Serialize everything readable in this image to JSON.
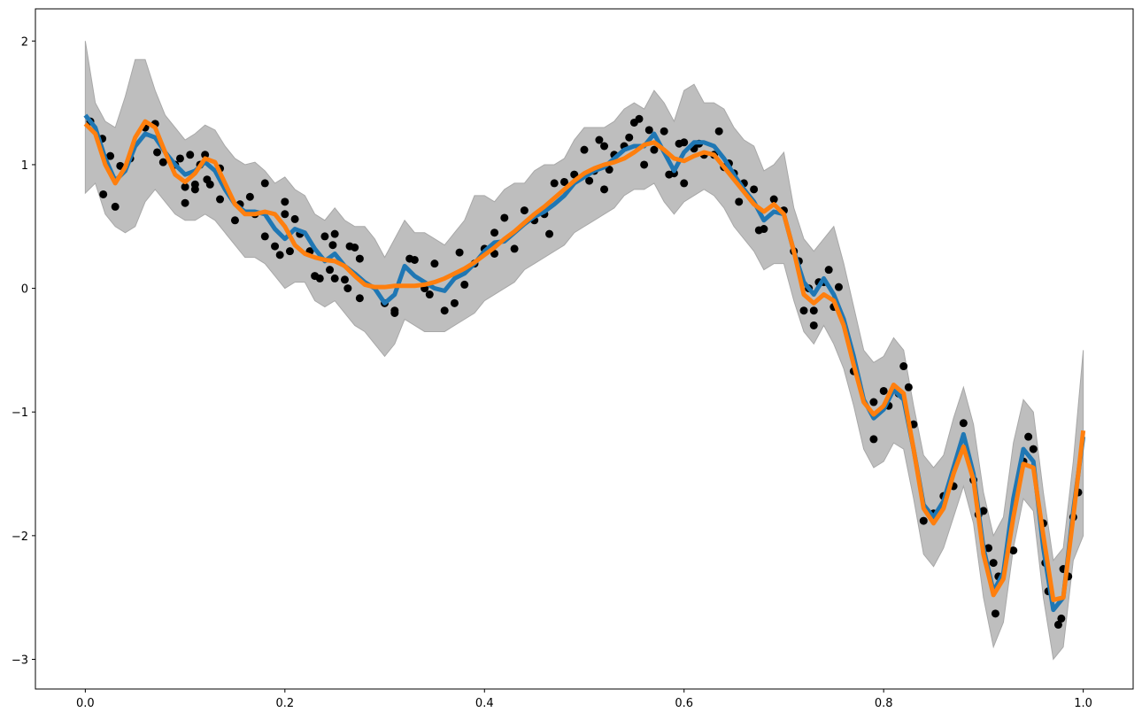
{
  "chart_data": {
    "type": "line",
    "xlim": [
      -0.05,
      1.05
    ],
    "ylim": [
      -3.24,
      2.26
    ],
    "xticks": [
      {
        "value": 0,
        "label": "0.0"
      },
      {
        "value": 0.2,
        "label": "0.2"
      },
      {
        "value": 0.4,
        "label": "0.4"
      },
      {
        "value": 0.6,
        "label": "0.6"
      },
      {
        "value": 0.8,
        "label": "0.8"
      },
      {
        "value": 1,
        "label": "1.0"
      }
    ],
    "yticks": [
      {
        "value": -3,
        "label": "−3"
      },
      {
        "value": -2,
        "label": "−2"
      },
      {
        "value": -1,
        "label": "−1"
      },
      0,
      1,
      2
    ],
    "grid": false,
    "x": [
      0,
      0.01,
      0.02,
      0.03,
      0.04,
      0.05,
      0.06,
      0.07,
      0.08,
      0.09,
      0.1,
      0.11,
      0.12,
      0.13,
      0.14,
      0.15,
      0.16,
      0.17,
      0.18,
      0.19,
      0.2,
      0.21,
      0.22,
      0.23,
      0.24,
      0.25,
      0.26,
      0.27,
      0.28,
      0.29,
      0.3,
      0.31,
      0.32,
      0.33,
      0.34,
      0.35,
      0.36,
      0.37,
      0.38,
      0.39,
      0.4,
      0.41,
      0.42,
      0.43,
      0.44,
      0.45,
      0.46,
      0.47,
      0.48,
      0.49,
      0.5,
      0.51,
      0.52,
      0.53,
      0.54,
      0.55,
      0.56,
      0.57,
      0.58,
      0.59,
      0.6,
      0.61,
      0.62,
      0.63,
      0.64,
      0.65,
      0.66,
      0.67,
      0.68,
      0.69,
      0.7,
      0.71,
      0.72,
      0.73,
      0.74,
      0.75,
      0.76,
      0.77,
      0.78,
      0.79,
      0.8,
      0.81,
      0.82,
      0.83,
      0.84,
      0.85,
      0.86,
      0.87,
      0.88,
      0.89,
      0.9,
      0.91,
      0.92,
      0.93,
      0.94,
      0.95,
      0.96,
      0.97,
      0.98,
      0.99,
      1
    ],
    "band": {
      "color": "#bebebe",
      "edge": "#a8a8a8",
      "upper": [
        2.0,
        1.5,
        1.35,
        1.3,
        1.55,
        1.85,
        1.85,
        1.6,
        1.4,
        1.3,
        1.2,
        1.25,
        1.32,
        1.28,
        1.15,
        1.05,
        1.0,
        1.02,
        0.95,
        0.85,
        0.9,
        0.8,
        0.75,
        0.6,
        0.55,
        0.65,
        0.55,
        0.5,
        0.5,
        0.4,
        0.25,
        0.4,
        0.55,
        0.45,
        0.45,
        0.4,
        0.35,
        0.45,
        0.55,
        0.75,
        0.75,
        0.7,
        0.8,
        0.85,
        0.85,
        0.95,
        1.0,
        1.0,
        1.05,
        1.2,
        1.3,
        1.3,
        1.3,
        1.35,
        1.45,
        1.5,
        1.45,
        1.6,
        1.5,
        1.35,
        1.6,
        1.65,
        1.5,
        1.5,
        1.45,
        1.3,
        1.2,
        1.15,
        0.95,
        1.0,
        1.1,
        0.65,
        0.4,
        0.3,
        0.4,
        0.5,
        0.2,
        -0.15,
        -0.5,
        -0.6,
        -0.55,
        -0.4,
        -0.5,
        -0.95,
        -1.35,
        -1.45,
        -1.35,
        -1.05,
        -0.8,
        -1.1,
        -1.65,
        -2.0,
        -1.85,
        -1.25,
        -0.9,
        -1.0,
        -1.65,
        -2.2,
        -2.1,
        -1.4,
        -0.5
      ],
      "lower": [
        0.77,
        0.85,
        0.6,
        0.5,
        0.45,
        0.5,
        0.7,
        0.8,
        0.7,
        0.6,
        0.55,
        0.55,
        0.6,
        0.55,
        0.45,
        0.35,
        0.25,
        0.25,
        0.2,
        0.1,
        0.0,
        0.05,
        0.05,
        -0.1,
        -0.15,
        -0.1,
        -0.2,
        -0.3,
        -0.35,
        -0.45,
        -0.55,
        -0.45,
        -0.25,
        -0.3,
        -0.35,
        -0.35,
        -0.35,
        -0.3,
        -0.25,
        -0.2,
        -0.1,
        -0.05,
        0.0,
        0.05,
        0.15,
        0.2,
        0.25,
        0.3,
        0.35,
        0.45,
        0.5,
        0.55,
        0.6,
        0.65,
        0.75,
        0.8,
        0.8,
        0.85,
        0.7,
        0.6,
        0.7,
        0.75,
        0.8,
        0.75,
        0.65,
        0.5,
        0.4,
        0.3,
        0.15,
        0.2,
        0.2,
        -0.1,
        -0.35,
        -0.45,
        -0.3,
        -0.45,
        -0.65,
        -0.95,
        -1.3,
        -1.45,
        -1.4,
        -1.25,
        -1.3,
        -1.7,
        -2.15,
        -2.25,
        -2.1,
        -1.85,
        -1.6,
        -1.9,
        -2.5,
        -2.9,
        -2.7,
        -2.1,
        -1.7,
        -1.8,
        -2.5,
        -3.0,
        -2.9,
        -2.2,
        -2.0
      ]
    },
    "series": [
      {
        "color": "#1f77b4",
        "values": [
          1.4,
          1.3,
          1.05,
          0.87,
          0.95,
          1.15,
          1.25,
          1.22,
          1.1,
          1.0,
          0.92,
          0.95,
          1.02,
          0.95,
          0.8,
          0.68,
          0.62,
          0.62,
          0.6,
          0.48,
          0.4,
          0.48,
          0.45,
          0.32,
          0.22,
          0.28,
          0.18,
          0.12,
          0.05,
          0.0,
          -0.12,
          -0.05,
          0.18,
          0.1,
          0.05,
          0.0,
          -0.02,
          0.08,
          0.12,
          0.2,
          0.3,
          0.37,
          0.38,
          0.45,
          0.52,
          0.58,
          0.62,
          0.68,
          0.75,
          0.85,
          0.9,
          0.95,
          0.98,
          1.05,
          1.12,
          1.15,
          1.15,
          1.25,
          1.1,
          0.95,
          1.1,
          1.18,
          1.18,
          1.15,
          1.05,
          0.92,
          0.8,
          0.7,
          0.55,
          0.62,
          0.6,
          0.3,
          0.05,
          -0.05,
          0.08,
          -0.05,
          -0.25,
          -0.55,
          -0.9,
          -1.05,
          -0.98,
          -0.82,
          -0.9,
          -1.3,
          -1.75,
          -1.85,
          -1.72,
          -1.45,
          -1.18,
          -1.5,
          -2.1,
          -2.45,
          -2.3,
          -1.7,
          -1.3,
          -1.4,
          -2.1,
          -2.6,
          -2.5,
          -1.8,
          -1.2
        ]
      },
      {
        "color": "#ff7f0e",
        "values": [
          1.33,
          1.25,
          1.0,
          0.85,
          0.98,
          1.22,
          1.35,
          1.3,
          1.1,
          0.92,
          0.86,
          0.93,
          1.05,
          1.02,
          0.85,
          0.68,
          0.6,
          0.6,
          0.62,
          0.6,
          0.5,
          0.35,
          0.28,
          0.25,
          0.23,
          0.22,
          0.18,
          0.1,
          0.03,
          0.01,
          0.01,
          0.02,
          0.02,
          0.02,
          0.03,
          0.05,
          0.08,
          0.12,
          0.16,
          0.21,
          0.27,
          0.33,
          0.4,
          0.46,
          0.53,
          0.6,
          0.66,
          0.73,
          0.8,
          0.87,
          0.93,
          0.97,
          1.0,
          1.02,
          1.05,
          1.1,
          1.16,
          1.18,
          1.12,
          1.05,
          1.03,
          1.07,
          1.1,
          1.08,
          0.98,
          0.88,
          0.78,
          0.68,
          0.62,
          0.68,
          0.6,
          0.3,
          -0.05,
          -0.12,
          -0.05,
          -0.1,
          -0.3,
          -0.62,
          -0.92,
          -1.02,
          -0.95,
          -0.78,
          -0.85,
          -1.3,
          -1.78,
          -1.9,
          -1.78,
          -1.5,
          -1.28,
          -1.55,
          -2.15,
          -2.48,
          -2.35,
          -1.85,
          -1.42,
          -1.45,
          -2.0,
          -2.52,
          -2.5,
          -1.85,
          -1.15
        ]
      }
    ],
    "scatter": {
      "color": "#000000",
      "x": [
        0.005,
        0.017,
        0.018,
        0.025,
        0.03,
        0.035,
        0.045,
        0.06,
        0.07,
        0.072,
        0.078,
        0.09,
        0.095,
        0.1,
        0.1,
        0.105,
        0.11,
        0.11,
        0.115,
        0.12,
        0.122,
        0.125,
        0.135,
        0.135,
        0.15,
        0.155,
        0.165,
        0.17,
        0.18,
        0.18,
        0.19,
        0.195,
        0.2,
        0.2,
        0.205,
        0.21,
        0.215,
        0.225,
        0.23,
        0.235,
        0.24,
        0.245,
        0.248,
        0.25,
        0.25,
        0.26,
        0.263,
        0.265,
        0.27,
        0.275,
        0.275,
        0.3,
        0.31,
        0.31,
        0.325,
        0.33,
        0.34,
        0.345,
        0.35,
        0.36,
        0.37,
        0.375,
        0.38,
        0.39,
        0.4,
        0.41,
        0.41,
        0.42,
        0.43,
        0.44,
        0.45,
        0.46,
        0.465,
        0.47,
        0.48,
        0.49,
        0.5,
        0.505,
        0.51,
        0.515,
        0.52,
        0.52,
        0.525,
        0.53,
        0.54,
        0.545,
        0.55,
        0.555,
        0.56,
        0.565,
        0.57,
        0.58,
        0.585,
        0.59,
        0.595,
        0.6,
        0.6,
        0.61,
        0.615,
        0.62,
        0.63,
        0.635,
        0.64,
        0.645,
        0.65,
        0.655,
        0.66,
        0.67,
        0.675,
        0.68,
        0.69,
        0.7,
        0.71,
        0.715,
        0.72,
        0.725,
        0.73,
        0.73,
        0.735,
        0.74,
        0.745,
        0.75,
        0.755,
        0.77,
        0.79,
        0.79,
        0.8,
        0.805,
        0.815,
        0.82,
        0.825,
        0.83,
        0.84,
        0.85,
        0.86,
        0.87,
        0.88,
        0.89,
        0.895,
        0.9,
        0.905,
        0.91,
        0.912,
        0.915,
        0.93,
        0.94,
        0.945,
        0.95,
        0.96,
        0.962,
        0.965,
        0.975,
        0.978,
        0.98,
        0.985,
        0.99,
        0.995
      ],
      "y": [
        1.35,
        1.21,
        0.76,
        1.07,
        0.66,
        0.99,
        1.05,
        1.3,
        1.33,
        1.1,
        1.02,
        1.0,
        1.05,
        0.82,
        0.69,
        1.08,
        0.8,
        0.84,
        1.0,
        1.08,
        0.88,
        0.84,
        0.97,
        0.72,
        0.55,
        0.68,
        0.74,
        0.6,
        0.42,
        0.85,
        0.34,
        0.27,
        0.7,
        0.6,
        0.3,
        0.56,
        0.44,
        0.3,
        0.1,
        0.08,
        0.42,
        0.15,
        0.35,
        0.44,
        0.08,
        0.07,
        0.0,
        0.34,
        0.33,
        0.24,
        -0.08,
        -0.12,
        -0.18,
        -0.2,
        0.24,
        0.23,
        0.0,
        -0.05,
        0.2,
        -0.18,
        -0.12,
        0.29,
        0.03,
        0.2,
        0.32,
        0.45,
        0.28,
        0.57,
        0.32,
        0.63,
        0.55,
        0.6,
        0.44,
        0.85,
        0.86,
        0.92,
        1.12,
        0.87,
        0.95,
        1.2,
        1.15,
        0.8,
        0.96,
        1.08,
        1.15,
        1.22,
        1.34,
        1.37,
        1.0,
        1.28,
        1.12,
        1.27,
        0.92,
        0.93,
        1.17,
        1.18,
        0.85,
        1.13,
        1.17,
        1.08,
        1.08,
        1.27,
        0.98,
        1.01,
        0.93,
        0.7,
        0.85,
        0.8,
        0.47,
        0.48,
        0.72,
        0.63,
        0.3,
        0.22,
        -0.18,
        0.0,
        -0.3,
        -0.18,
        0.05,
        0.05,
        0.15,
        -0.15,
        0.01,
        -0.67,
        -0.92,
        -1.22,
        -0.83,
        -0.95,
        -0.85,
        -0.63,
        -0.8,
        -1.1,
        -1.88,
        -1.82,
        -1.68,
        -1.6,
        -1.09,
        -1.55,
        -1.83,
        -1.8,
        -2.1,
        -2.22,
        -2.63,
        -2.33,
        -2.12,
        -1.4,
        -1.2,
        -1.3,
        -1.9,
        -2.22,
        -2.45,
        -2.72,
        -2.67,
        -2.27,
        -2.33,
        -1.85,
        -1.65
      ]
    }
  }
}
